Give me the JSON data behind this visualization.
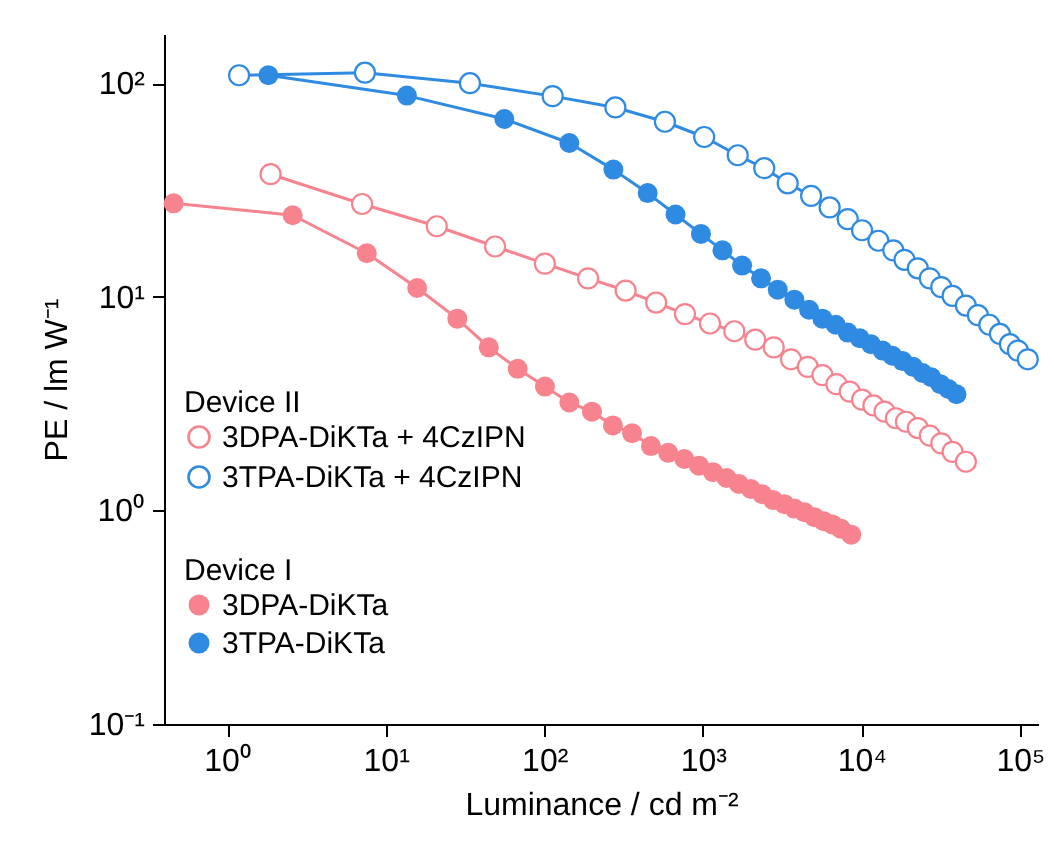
{
  "chart_data": {
    "type": "line",
    "xlabel": "Luminance / cd m⁻²",
    "ylabel": "PE / lm W⁻¹",
    "log": "xy",
    "grid": false,
    "legend": "bottom left",
    "marker": "circle",
    "line_style": "solid",
    "xlim": [
      0.4,
      130000
    ],
    "ylim": [
      0.1,
      170
    ],
    "xticks": [
      {
        "value": 1,
        "label": "10⁰"
      },
      {
        "value": 10,
        "label": "10¹"
      },
      {
        "value": 100,
        "label": "10²"
      },
      {
        "value": 1000,
        "label": "10³"
      },
      {
        "value": 10000,
        "label": "10⁴"
      },
      {
        "value": 100000,
        "label": "10⁵"
      }
    ],
    "yticks": [
      {
        "value": 0.1,
        "label": "10⁻¹"
      },
      {
        "value": 1,
        "label": "10⁰"
      },
      {
        "value": 10,
        "label": "10¹"
      },
      {
        "value": 100,
        "label": "10²"
      }
    ],
    "annotations": [
      "Device II",
      "Device I"
    ],
    "series": [
      {
        "name": "3DPA-DiKTa + 4CzIPN",
        "color": "#f7838e",
        "x": [
          1.88,
          7.1,
          21,
          49,
          101,
          189,
          326,
          508,
          772,
          1110,
          1580,
          2140,
          2800,
          3600,
          4590,
          5680,
          6960,
          8450,
          10100,
          11900,
          14000,
          16500,
          19100,
          22700,
          27000,
          31900,
          37600,
          45600
        ],
        "values": [
          37.5,
          27.2,
          21.4,
          17.2,
          14.3,
          12.2,
          10.7,
          9.4,
          8.3,
          7.5,
          6.9,
          6.3,
          5.8,
          5.1,
          4.7,
          4.3,
          3.9,
          3.6,
          3.3,
          3.1,
          2.9,
          2.7,
          2.6,
          2.43,
          2.24,
          2.06,
          1.88,
          1.69
        ]
      },
      {
        "name": "3TPA-DiKTa + 4CzIPN",
        "color": "#2f8ae2",
        "x": [
          1.19,
          7.4,
          34,
          113,
          281,
          577,
          1020,
          1660,
          2440,
          3430,
          4820,
          6310,
          8200,
          10100,
          12800,
          15900,
          18700,
          22700,
          27000,
          31900,
          37600,
          45600,
          54300,
          64100,
          74800,
          86500,
          97000,
          112000
        ],
        "values": [
          109,
          112,
          100,
          87,
          77,
          66,
          56,
          46,
          40,
          34,
          29.7,
          26.2,
          23.1,
          20.5,
          18.3,
          16.5,
          14.9,
          13.6,
          12.2,
          11.1,
          10.1,
          9.1,
          8.2,
          7.4,
          6.7,
          6.0,
          5.6,
          5.1
        ]
      },
      {
        "name": "3DPA-DiKTa",
        "color": "#f7838e",
        "x": [
          0.46,
          2.59,
          7.6,
          15.8,
          28.3,
          44.7,
          68,
          101,
          144,
          200,
          271,
          358,
          471,
          605,
          764,
          946,
          1160,
          1410,
          1690,
          2010,
          2370,
          2770,
          3270,
          3780,
          4370,
          5050,
          5790,
          6560,
          7450,
          8630
        ],
        "values": [
          27.4,
          24.1,
          16.0,
          11.0,
          7.9,
          5.8,
          4.6,
          3.8,
          3.2,
          2.9,
          2.5,
          2.3,
          2.0,
          1.86,
          1.74,
          1.62,
          1.51,
          1.42,
          1.33,
          1.26,
          1.19,
          1.12,
          1.07,
          1.02,
          0.98,
          0.93,
          0.89,
          0.86,
          0.82,
          0.77
        ]
      },
      {
        "name": "3TPA-DiKTa",
        "color": "#2f8ae2",
        "x": [
          1.82,
          13.6,
          56,
          144,
          273,
          449,
          673,
          973,
          1330,
          1770,
          2330,
          2970,
          3780,
          4680,
          5680,
          6890,
          8200,
          9770,
          11500,
          13600,
          15700,
          18200,
          21200,
          24300,
          27600,
          31500,
          35400,
          39800
        ],
        "values": [
          109,
          87.5,
          68,
          52.5,
          39.4,
          30.6,
          24.3,
          19.7,
          16.5,
          14.0,
          12.2,
          10.8,
          9.7,
          8.7,
          7.9,
          7.4,
          6.8,
          6.4,
          6.0,
          5.6,
          5.3,
          5.0,
          4.7,
          4.4,
          4.2,
          3.9,
          3.7,
          3.5
        ]
      }
    ]
  }
}
